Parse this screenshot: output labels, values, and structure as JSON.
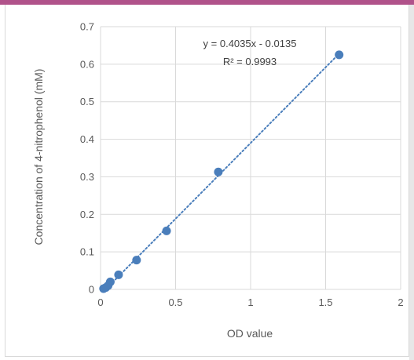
{
  "chart_data": {
    "type": "scatter",
    "xlabel": "OD value",
    "ylabel": "Concentration of 4-nitrophenol (mM)",
    "xlim": [
      0,
      2
    ],
    "ylim": [
      0,
      0.7
    ],
    "x_ticks": [
      "0",
      "0.5",
      "1",
      "1.5",
      "2"
    ],
    "y_ticks": [
      "0",
      "0.1",
      "0.2",
      "0.3",
      "0.4",
      "0.5",
      "0.6",
      "0.7"
    ],
    "grid": "vertical and horizontal",
    "series": [
      {
        "marker_color": "#4a7ebb",
        "x": [
          0.02,
          0.035,
          0.05,
          0.065,
          0.12,
          0.24,
          0.44,
          0.785,
          1.59
        ],
        "y": [
          0.002,
          0.005,
          0.01,
          0.02,
          0.039,
          0.078,
          0.156,
          0.313,
          0.625
        ]
      }
    ],
    "trendline": {
      "style": "dotted",
      "color": "#4a7ebb",
      "slope": 0.4035,
      "intercept": -0.0135,
      "x_range": [
        0.08,
        1.59
      ]
    },
    "annotations": {
      "equation": "y = 0.4035x - 0.0135",
      "r_squared": "R² = 0.9993"
    }
  }
}
